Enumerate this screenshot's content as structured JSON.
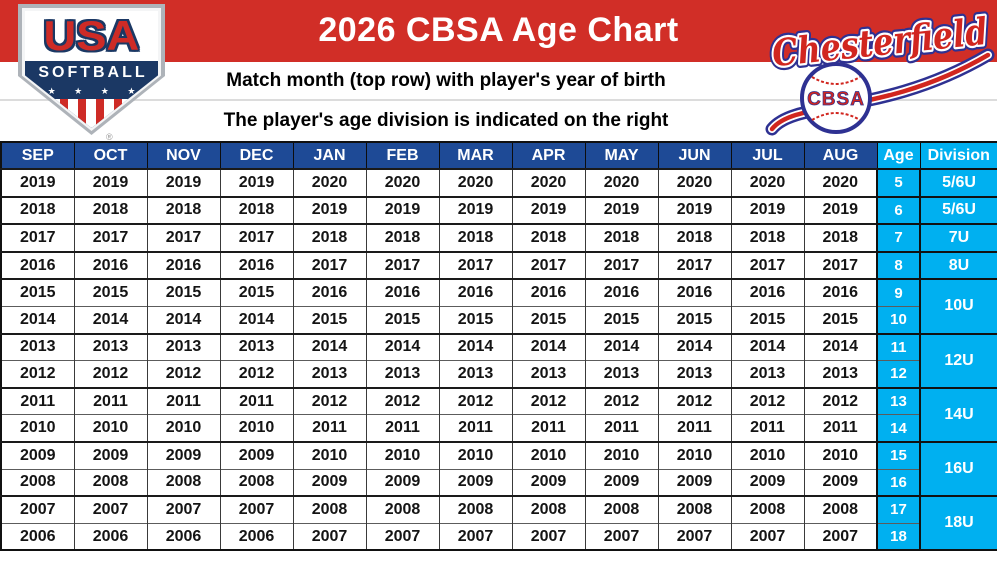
{
  "header": {
    "title": "2026 CBSA Age Chart",
    "instruction_line1": "Match month (top row) with player's year of birth",
    "instruction_line2": "The player's age division is indicated on the right"
  },
  "usa_logo": {
    "usa": "USA",
    "softball": "SOFTBALL",
    "stars": "★ ★ ★ ★",
    "registered": "®"
  },
  "chesterfield_logo": {
    "name": "Chesterfield",
    "ball": "CBSA"
  },
  "colors": {
    "banner_red": "#d12e27",
    "header_navy": "#1e4a96",
    "cyan": "#00b0f0",
    "logo_navy": "#1b3864",
    "logo_red": "#ce2b26",
    "chesterfield_navy": "#2e3192",
    "chesterfield_red": "#d1261f"
  },
  "table": {
    "months": [
      "SEP",
      "OCT",
      "NOV",
      "DEC",
      "JAN",
      "FEB",
      "MAR",
      "APR",
      "MAY",
      "JUN",
      "JUL",
      "AUG"
    ],
    "age_header": "Age",
    "division_header": "Division",
    "rows": [
      {
        "age": "5",
        "months": [
          "2019",
          "2019",
          "2019",
          "2019",
          "2020",
          "2020",
          "2020",
          "2020",
          "2020",
          "2020",
          "2020",
          "2020"
        ],
        "division": "5/6U",
        "span": 1,
        "thin_top": false
      },
      {
        "age": "6",
        "months": [
          "2018",
          "2018",
          "2018",
          "2018",
          "2019",
          "2019",
          "2019",
          "2019",
          "2019",
          "2019",
          "2019",
          "2019"
        ],
        "division": "5/6U",
        "span": 1,
        "thin_top": false
      },
      {
        "age": "7",
        "months": [
          "2017",
          "2017",
          "2017",
          "2017",
          "2018",
          "2018",
          "2018",
          "2018",
          "2018",
          "2018",
          "2018",
          "2018"
        ],
        "division": "7U",
        "span": 1,
        "thin_top": false
      },
      {
        "age": "8",
        "months": [
          "2016",
          "2016",
          "2016",
          "2016",
          "2017",
          "2017",
          "2017",
          "2017",
          "2017",
          "2017",
          "2017",
          "2017"
        ],
        "division": "8U",
        "span": 1,
        "thin_top": false
      },
      {
        "age": "9",
        "months": [
          "2015",
          "2015",
          "2015",
          "2015",
          "2016",
          "2016",
          "2016",
          "2016",
          "2016",
          "2016",
          "2016",
          "2016"
        ],
        "division": "10U",
        "span": 2,
        "thin_top": false
      },
      {
        "age": "10",
        "months": [
          "2014",
          "2014",
          "2014",
          "2014",
          "2015",
          "2015",
          "2015",
          "2015",
          "2015",
          "2015",
          "2015",
          "2015"
        ],
        "division": null,
        "span": 1,
        "thin_top": true
      },
      {
        "age": "11",
        "months": [
          "2013",
          "2013",
          "2013",
          "2013",
          "2014",
          "2014",
          "2014",
          "2014",
          "2014",
          "2014",
          "2014",
          "2014"
        ],
        "division": "12U",
        "span": 2,
        "thin_top": false
      },
      {
        "age": "12",
        "months": [
          "2012",
          "2012",
          "2012",
          "2012",
          "2013",
          "2013",
          "2013",
          "2013",
          "2013",
          "2013",
          "2013",
          "2013"
        ],
        "division": null,
        "span": 1,
        "thin_top": true
      },
      {
        "age": "13",
        "months": [
          "2011",
          "2011",
          "2011",
          "2011",
          "2012",
          "2012",
          "2012",
          "2012",
          "2012",
          "2012",
          "2012",
          "2012"
        ],
        "division": "14U",
        "span": 2,
        "thin_top": false
      },
      {
        "age": "14",
        "months": [
          "2010",
          "2010",
          "2010",
          "2010",
          "2011",
          "2011",
          "2011",
          "2011",
          "2011",
          "2011",
          "2011",
          "2011"
        ],
        "division": null,
        "span": 1,
        "thin_top": true
      },
      {
        "age": "15",
        "months": [
          "2009",
          "2009",
          "2009",
          "2009",
          "2010",
          "2010",
          "2010",
          "2010",
          "2010",
          "2010",
          "2010",
          "2010"
        ],
        "division": "16U",
        "span": 2,
        "thin_top": false
      },
      {
        "age": "16",
        "months": [
          "2008",
          "2008",
          "2008",
          "2008",
          "2009",
          "2009",
          "2009",
          "2009",
          "2009",
          "2009",
          "2009",
          "2009"
        ],
        "division": null,
        "span": 1,
        "thin_top": true
      },
      {
        "age": "17",
        "months": [
          "2007",
          "2007",
          "2007",
          "2007",
          "2008",
          "2008",
          "2008",
          "2008",
          "2008",
          "2008",
          "2008",
          "2008"
        ],
        "division": "18U",
        "span": 2,
        "thin_top": false
      },
      {
        "age": "18",
        "months": [
          "2006",
          "2006",
          "2006",
          "2006",
          "2007",
          "2007",
          "2007",
          "2007",
          "2007",
          "2007",
          "2007",
          "2007"
        ],
        "division": null,
        "span": 1,
        "thin_top": true
      }
    ]
  }
}
